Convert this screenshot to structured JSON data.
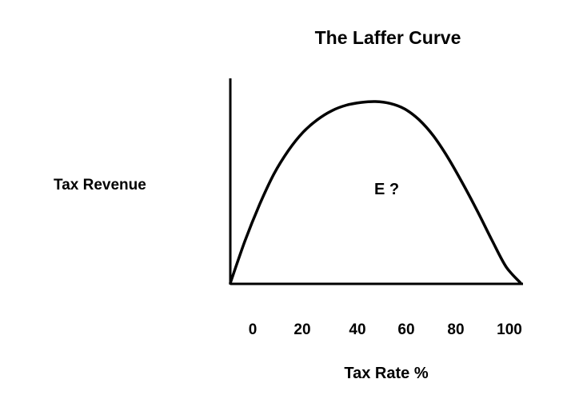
{
  "chart_data": {
    "type": "line",
    "title": "The Laffer Curve",
    "xlabel": "Tax Rate %",
    "ylabel": "Tax Revenue",
    "xticks": [
      "0",
      "20",
      "40",
      "60",
      "80",
      "100"
    ],
    "annotation": "E ?",
    "xlim": [
      0,
      100
    ],
    "grid": false,
    "legend": "none",
    "series": [
      {
        "x": [
          0,
          5,
          10,
          15,
          20,
          25,
          30,
          35,
          40,
          45,
          50,
          55,
          60,
          65,
          70,
          75,
          80,
          85,
          90,
          95,
          100
        ],
        "values": [
          0,
          23,
          43,
          60,
          73,
          83,
          90,
          95,
          98,
          99.5,
          100,
          99,
          96,
          90,
          81,
          69,
          55,
          40,
          24,
          9,
          0
        ]
      }
    ],
    "color": "#000000"
  }
}
